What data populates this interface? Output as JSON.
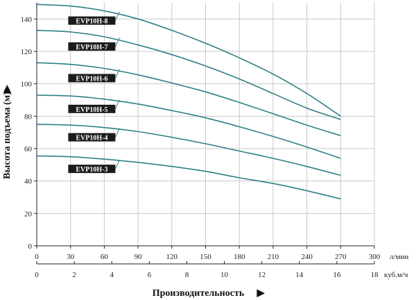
{
  "chart_data": {
    "type": "line",
    "ylabel": "Высота подъема (м)",
    "xlabel": "Производительность",
    "x_unit_primary": "л/мин",
    "x_unit_secondary": "куб.м/ч",
    "grid": true,
    "xlim": [
      0,
      300
    ],
    "ylim": [
      0,
      150
    ],
    "xticks": [
      0,
      30,
      60,
      90,
      120,
      150,
      180,
      210,
      240,
      270,
      300
    ],
    "yticks": [
      0,
      20,
      40,
      60,
      80,
      100,
      120,
      140
    ],
    "x2lim": [
      0,
      18
    ],
    "x2ticks": [
      0,
      2,
      4,
      6,
      8,
      10,
      12,
      14,
      16,
      18
    ],
    "colors": {
      "curve": "#2e7f86",
      "grid": "#c8c8c8",
      "axis": "#222222",
      "label_bg": "#1b1b1b"
    },
    "series": [
      {
        "name": "EVP10H-8",
        "x": [
          0,
          30,
          60,
          90,
          120,
          150,
          180,
          210,
          240,
          270
        ],
        "y": [
          149,
          148,
          145,
          140,
          133,
          125,
          116,
          106,
          94,
          80
        ]
      },
      {
        "name": "EVP10H-7",
        "x": [
          0,
          30,
          60,
          90,
          120,
          150,
          180,
          210,
          240,
          270
        ],
        "y": [
          133,
          132,
          129,
          124,
          118,
          111,
          103,
          94,
          85,
          78
        ]
      },
      {
        "name": "EVP10H-6",
        "x": [
          0,
          30,
          60,
          90,
          120,
          150,
          180,
          210,
          240,
          270
        ],
        "y": [
          113,
          112,
          109.5,
          105.5,
          100.5,
          95,
          88.5,
          81.5,
          74.5,
          68
        ]
      },
      {
        "name": "EVP10H-5",
        "x": [
          0,
          30,
          60,
          90,
          120,
          150,
          180,
          210,
          240,
          270
        ],
        "y": [
          93,
          92.5,
          90.5,
          87.5,
          83.5,
          79,
          73.5,
          67.5,
          61,
          54
        ]
      },
      {
        "name": "EVP10H-4",
        "x": [
          0,
          30,
          60,
          90,
          120,
          150,
          180,
          210,
          240,
          270
        ],
        "y": [
          75,
          74.5,
          73,
          70.5,
          67,
          63,
          58.5,
          54,
          49,
          43.5
        ]
      },
      {
        "name": "EVP10H-3",
        "x": [
          0,
          30,
          60,
          90,
          120,
          150,
          180,
          210,
          240,
          270
        ],
        "y": [
          55.5,
          55,
          53.5,
          51.5,
          49,
          46,
          42,
          38.5,
          34,
          29
        ]
      }
    ]
  }
}
